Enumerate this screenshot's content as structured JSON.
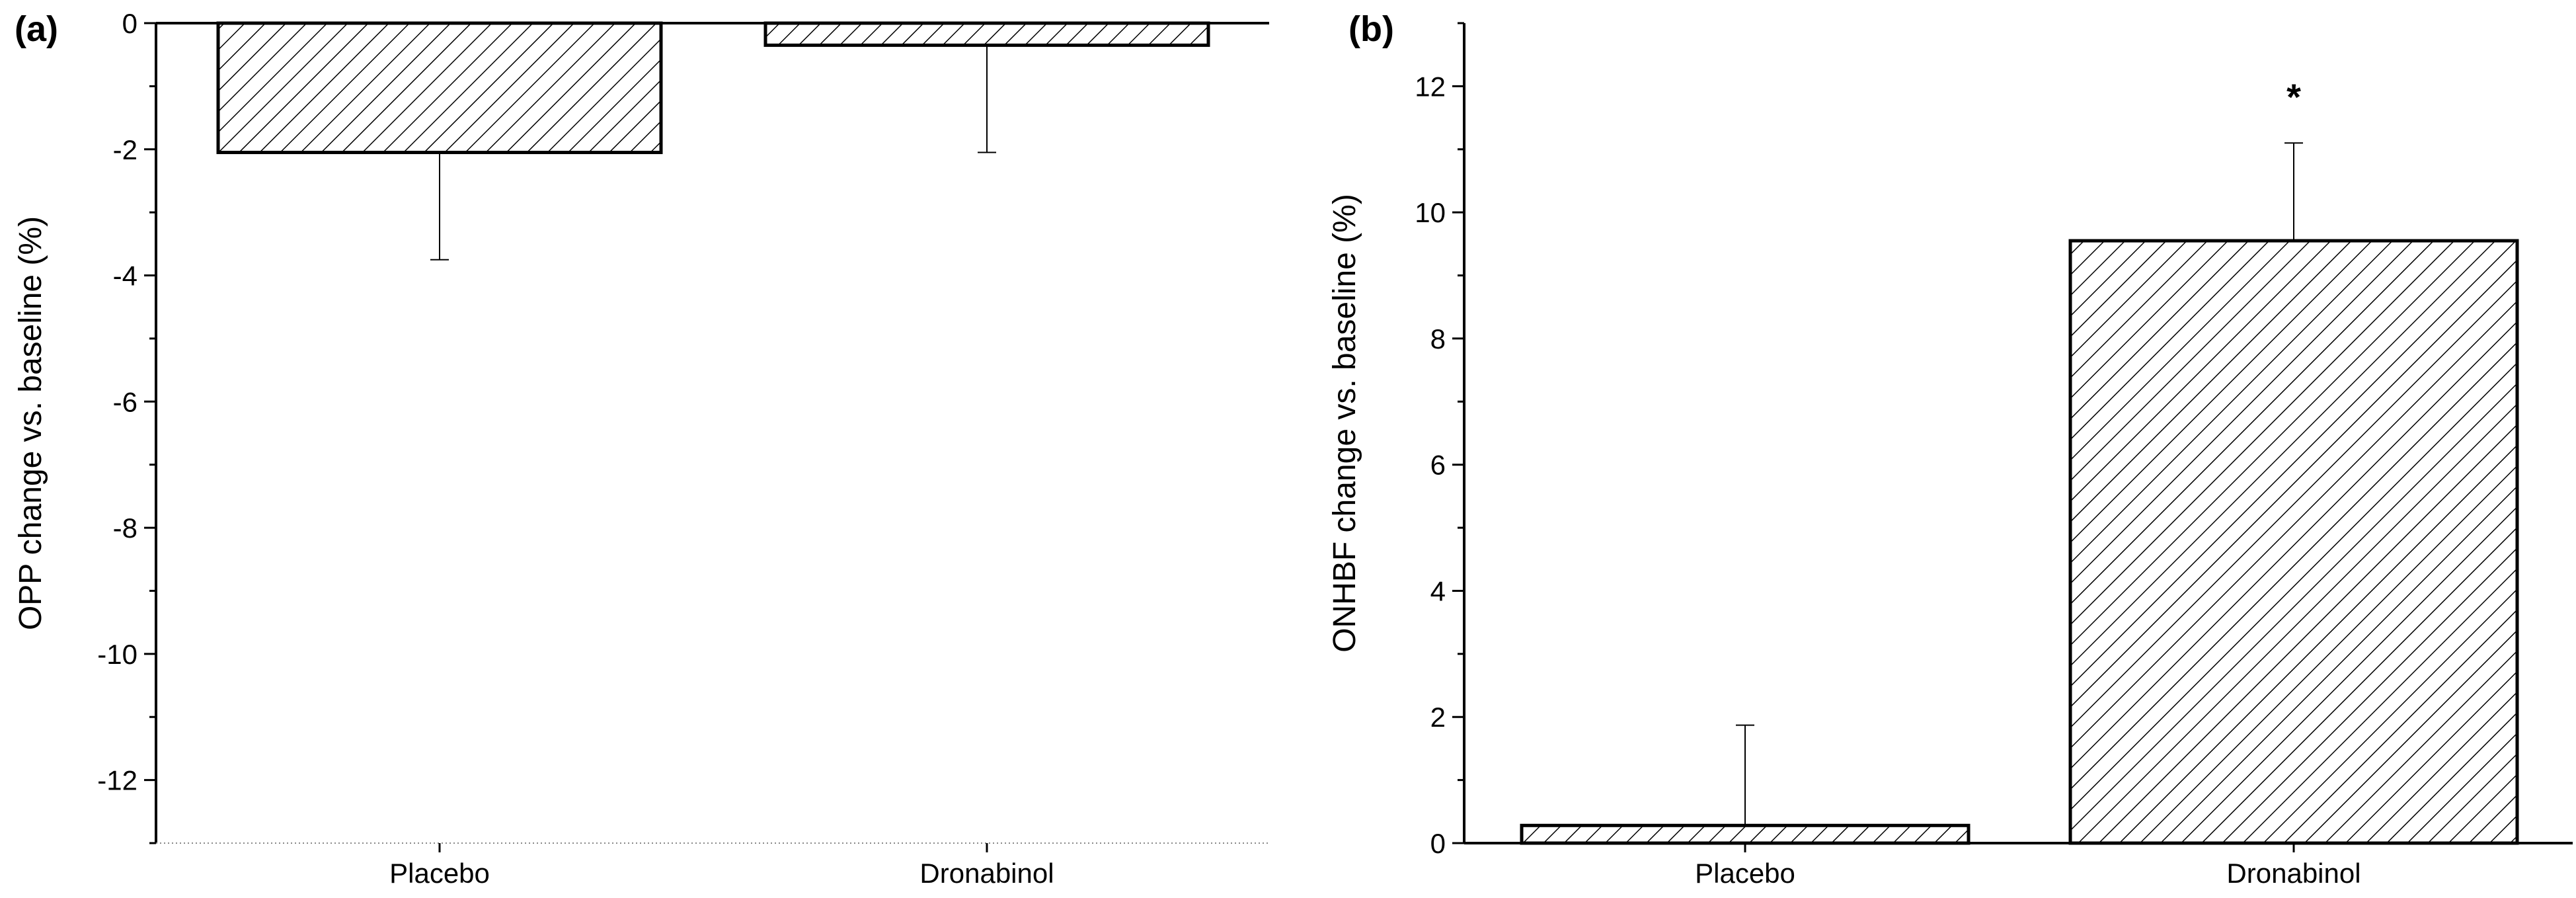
{
  "chart_data": [
    {
      "panel_label": "(a)",
      "type": "bar",
      "categories": [
        "Placebo",
        "Dronabinol"
      ],
      "values": [
        -2.05,
        -0.35
      ],
      "error_low": [
        -3.75,
        -2.05
      ],
      "ylim": [
        -13,
        0
      ],
      "yticks": [
        0,
        -2,
        -4,
        -6,
        -8,
        -10,
        -12
      ],
      "ylabel": "OPP change vs. baseline (%)",
      "annotations": [],
      "bar_fill": "diagonal-hatch",
      "grid": false
    },
    {
      "panel_label": "(b)",
      "type": "bar",
      "categories": [
        "Placebo",
        "Dronabinol"
      ],
      "values": [
        0.28,
        9.55
      ],
      "error_high": [
        1.87,
        11.1
      ],
      "ylim": [
        0,
        13
      ],
      "yticks": [
        0,
        2,
        4,
        6,
        8,
        10,
        12
      ],
      "ylabel": "ONHBF change vs. baseline (%)",
      "annotations": [
        {
          "category": "Dronabinol",
          "text": "*"
        }
      ],
      "bar_fill": "diagonal-hatch",
      "grid": false
    }
  ],
  "colors": {
    "bar_stroke": "#000000",
    "hatch": "#000000",
    "background": "#ffffff"
  }
}
